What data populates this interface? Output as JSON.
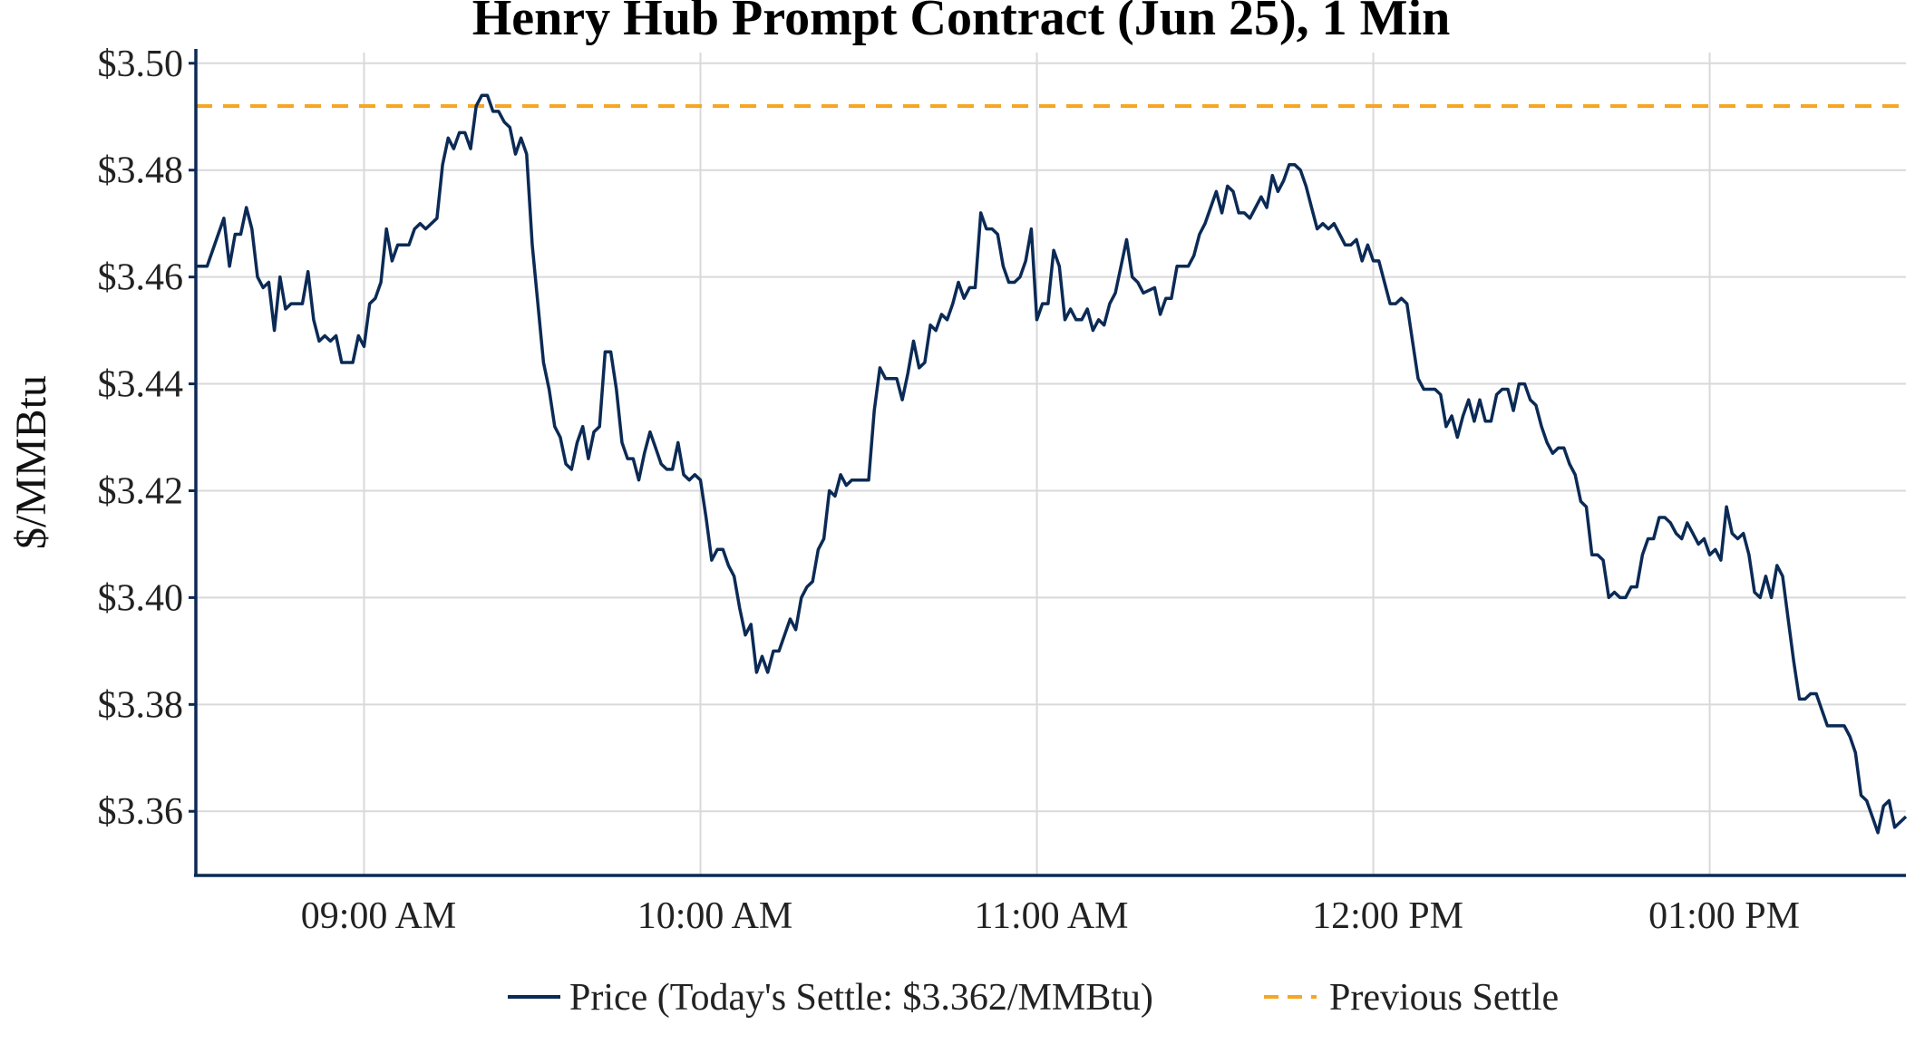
{
  "chart_data": {
    "type": "line",
    "title": "Henry Hub Prompt Contract (Jun 25), 1 Min",
    "xlabel": "",
    "ylabel": "$/MMBtu",
    "x_start": "08:30",
    "x_end": "13:35",
    "xlim": [
      "08:30",
      "13:35"
    ],
    "ylim": [
      3.348,
      3.502
    ],
    "y_ticks": [
      3.36,
      3.38,
      3.4,
      3.42,
      3.44,
      3.46,
      3.48,
      3.5
    ],
    "y_tick_labels": [
      "$3.36",
      "$3.38",
      "$3.40",
      "$3.42",
      "$3.44",
      "$3.46",
      "$3.48",
      "$3.50"
    ],
    "x_ticks": [
      "09:00",
      "10:00",
      "11:00",
      "12:00",
      "13:00"
    ],
    "x_tick_labels": [
      "09:00 AM",
      "10:00 AM",
      "11:00 AM",
      "12:00 PM",
      "01:00 PM"
    ],
    "grid": true,
    "legend_position": "bottom-center",
    "series": [
      {
        "name": "Price (Today's Settle: $3.362/MMBtu)",
        "color": "#0b2a55",
        "style": "solid",
        "points": [
          [
            "08:30",
            3.462
          ],
          [
            "08:32",
            3.462
          ],
          [
            "08:34",
            3.468
          ],
          [
            "08:35",
            3.471
          ],
          [
            "08:36",
            3.462
          ],
          [
            "08:37",
            3.468
          ],
          [
            "08:38",
            3.468
          ],
          [
            "08:39",
            3.473
          ],
          [
            "08:40",
            3.469
          ],
          [
            "08:41",
            3.46
          ],
          [
            "08:42",
            3.458
          ],
          [
            "08:43",
            3.459
          ],
          [
            "08:44",
            3.45
          ],
          [
            "08:45",
            3.46
          ],
          [
            "08:46",
            3.454
          ],
          [
            "08:47",
            3.455
          ],
          [
            "08:49",
            3.455
          ],
          [
            "08:50",
            3.461
          ],
          [
            "08:51",
            3.452
          ],
          [
            "08:52",
            3.448
          ],
          [
            "08:53",
            3.449
          ],
          [
            "08:54",
            3.448
          ],
          [
            "08:55",
            3.449
          ],
          [
            "08:56",
            3.444
          ],
          [
            "08:58",
            3.444
          ],
          [
            "08:59",
            3.449
          ],
          [
            "09:00",
            3.447
          ],
          [
            "09:01",
            3.455
          ],
          [
            "09:02",
            3.456
          ],
          [
            "09:03",
            3.459
          ],
          [
            "09:04",
            3.469
          ],
          [
            "09:05",
            3.463
          ],
          [
            "09:06",
            3.466
          ],
          [
            "09:08",
            3.466
          ],
          [
            "09:09",
            3.469
          ],
          [
            "09:10",
            3.47
          ],
          [
            "09:11",
            3.469
          ],
          [
            "09:13",
            3.471
          ],
          [
            "09:14",
            3.481
          ],
          [
            "09:15",
            3.486
          ],
          [
            "09:16",
            3.484
          ],
          [
            "09:17",
            3.487
          ],
          [
            "09:18",
            3.487
          ],
          [
            "09:19",
            3.484
          ],
          [
            "09:20",
            3.492
          ],
          [
            "09:21",
            3.494
          ],
          [
            "09:22",
            3.494
          ],
          [
            "09:23",
            3.491
          ],
          [
            "09:24",
            3.491
          ],
          [
            "09:25",
            3.489
          ],
          [
            "09:26",
            3.488
          ],
          [
            "09:27",
            3.483
          ],
          [
            "09:28",
            3.486
          ],
          [
            "09:29",
            3.483
          ],
          [
            "09:30",
            3.466
          ],
          [
            "09:31",
            3.455
          ],
          [
            "09:32",
            3.444
          ],
          [
            "09:33",
            3.439
          ],
          [
            "09:34",
            3.432
          ],
          [
            "09:35",
            3.43
          ],
          [
            "09:36",
            3.425
          ],
          [
            "09:37",
            3.424
          ],
          [
            "09:38",
            3.429
          ],
          [
            "09:39",
            3.432
          ],
          [
            "09:40",
            3.426
          ],
          [
            "09:41",
            3.431
          ],
          [
            "09:42",
            3.432
          ],
          [
            "09:43",
            3.446
          ],
          [
            "09:44",
            3.446
          ],
          [
            "09:45",
            3.439
          ],
          [
            "09:46",
            3.429
          ],
          [
            "09:47",
            3.426
          ],
          [
            "09:48",
            3.426
          ],
          [
            "09:49",
            3.422
          ],
          [
            "09:50",
            3.427
          ],
          [
            "09:51",
            3.431
          ],
          [
            "09:52",
            3.428
          ],
          [
            "09:53",
            3.425
          ],
          [
            "09:54",
            3.424
          ],
          [
            "09:55",
            3.424
          ],
          [
            "09:56",
            3.429
          ],
          [
            "09:57",
            3.423
          ],
          [
            "09:58",
            3.422
          ],
          [
            "09:59",
            3.423
          ],
          [
            "10:00",
            3.422
          ],
          [
            "10:01",
            3.415
          ],
          [
            "10:02",
            3.407
          ],
          [
            "10:03",
            3.409
          ],
          [
            "10:04",
            3.409
          ],
          [
            "10:05",
            3.406
          ],
          [
            "10:06",
            3.404
          ],
          [
            "10:07",
            3.398
          ],
          [
            "10:08",
            3.393
          ],
          [
            "10:09",
            3.395
          ],
          [
            "10:10",
            3.386
          ],
          [
            "10:11",
            3.389
          ],
          [
            "10:12",
            3.386
          ],
          [
            "10:13",
            3.39
          ],
          [
            "10:14",
            3.39
          ],
          [
            "10:15",
            3.393
          ],
          [
            "10:16",
            3.396
          ],
          [
            "10:17",
            3.394
          ],
          [
            "10:18",
            3.4
          ],
          [
            "10:19",
            3.402
          ],
          [
            "10:20",
            3.403
          ],
          [
            "10:21",
            3.409
          ],
          [
            "10:22",
            3.411
          ],
          [
            "10:23",
            3.42
          ],
          [
            "10:24",
            3.419
          ],
          [
            "10:25",
            3.423
          ],
          [
            "10:26",
            3.421
          ],
          [
            "10:27",
            3.422
          ],
          [
            "10:30",
            3.422
          ],
          [
            "10:31",
            3.435
          ],
          [
            "10:32",
            3.443
          ],
          [
            "10:33",
            3.441
          ],
          [
            "10:35",
            3.441
          ],
          [
            "10:36",
            3.437
          ],
          [
            "10:37",
            3.442
          ],
          [
            "10:38",
            3.448
          ],
          [
            "10:39",
            3.443
          ],
          [
            "10:40",
            3.444
          ],
          [
            "10:41",
            3.451
          ],
          [
            "10:42",
            3.45
          ],
          [
            "10:43",
            3.453
          ],
          [
            "10:44",
            3.452
          ],
          [
            "10:45",
            3.455
          ],
          [
            "10:46",
            3.459
          ],
          [
            "10:47",
            3.456
          ],
          [
            "10:48",
            3.458
          ],
          [
            "10:49",
            3.458
          ],
          [
            "10:50",
            3.472
          ],
          [
            "10:51",
            3.469
          ],
          [
            "10:52",
            3.469
          ],
          [
            "10:53",
            3.468
          ],
          [
            "10:54",
            3.462
          ],
          [
            "10:55",
            3.459
          ],
          [
            "10:56",
            3.459
          ],
          [
            "10:57",
            3.46
          ],
          [
            "10:58",
            3.463
          ],
          [
            "10:59",
            3.469
          ],
          [
            "11:00",
            3.452
          ],
          [
            "11:01",
            3.455
          ],
          [
            "11:02",
            3.455
          ],
          [
            "11:03",
            3.465
          ],
          [
            "11:04",
            3.462
          ],
          [
            "11:05",
            3.452
          ],
          [
            "11:06",
            3.454
          ],
          [
            "11:07",
            3.452
          ],
          [
            "11:08",
            3.452
          ],
          [
            "11:09",
            3.454
          ],
          [
            "11:10",
            3.45
          ],
          [
            "11:11",
            3.452
          ],
          [
            "11:12",
            3.451
          ],
          [
            "11:13",
            3.455
          ],
          [
            "11:14",
            3.457
          ],
          [
            "11:15",
            3.462
          ],
          [
            "11:16",
            3.467
          ],
          [
            "11:17",
            3.46
          ],
          [
            "11:18",
            3.459
          ],
          [
            "11:19",
            3.457
          ],
          [
            "11:21",
            3.458
          ],
          [
            "11:22",
            3.453
          ],
          [
            "11:23",
            3.456
          ],
          [
            "11:24",
            3.456
          ],
          [
            "11:25",
            3.462
          ],
          [
            "11:27",
            3.462
          ],
          [
            "11:28",
            3.464
          ],
          [
            "11:29",
            3.468
          ],
          [
            "11:30",
            3.47
          ],
          [
            "11:31",
            3.473
          ],
          [
            "11:32",
            3.476
          ],
          [
            "11:33",
            3.472
          ],
          [
            "11:34",
            3.477
          ],
          [
            "11:35",
            3.476
          ],
          [
            "11:36",
            3.472
          ],
          [
            "11:37",
            3.472
          ],
          [
            "11:38",
            3.471
          ],
          [
            "11:39",
            3.473
          ],
          [
            "11:40",
            3.475
          ],
          [
            "11:41",
            3.473
          ],
          [
            "11:42",
            3.479
          ],
          [
            "11:43",
            3.476
          ],
          [
            "11:44",
            3.478
          ],
          [
            "11:45",
            3.481
          ],
          [
            "11:46",
            3.481
          ],
          [
            "11:47",
            3.48
          ],
          [
            "11:48",
            3.477
          ],
          [
            "11:49",
            3.473
          ],
          [
            "11:50",
            3.469
          ],
          [
            "11:51",
            3.47
          ],
          [
            "11:52",
            3.469
          ],
          [
            "11:53",
            3.47
          ],
          [
            "11:54",
            3.468
          ],
          [
            "11:55",
            3.466
          ],
          [
            "11:56",
            3.466
          ],
          [
            "11:57",
            3.467
          ],
          [
            "11:58",
            3.463
          ],
          [
            "11:59",
            3.466
          ],
          [
            "12:00",
            3.463
          ],
          [
            "12:01",
            3.463
          ],
          [
            "12:02",
            3.459
          ],
          [
            "12:03",
            3.455
          ],
          [
            "12:04",
            3.455
          ],
          [
            "12:05",
            3.456
          ],
          [
            "12:06",
            3.455
          ],
          [
            "12:07",
            3.448
          ],
          [
            "12:08",
            3.441
          ],
          [
            "12:09",
            3.439
          ],
          [
            "12:11",
            3.439
          ],
          [
            "12:12",
            3.438
          ],
          [
            "12:13",
            3.432
          ],
          [
            "12:14",
            3.434
          ],
          [
            "12:15",
            3.43
          ],
          [
            "12:16",
            3.434
          ],
          [
            "12:17",
            3.437
          ],
          [
            "12:18",
            3.433
          ],
          [
            "12:19",
            3.437
          ],
          [
            "12:20",
            3.433
          ],
          [
            "12:21",
            3.433
          ],
          [
            "12:22",
            3.438
          ],
          [
            "12:23",
            3.439
          ],
          [
            "12:24",
            3.439
          ],
          [
            "12:25",
            3.435
          ],
          [
            "12:26",
            3.44
          ],
          [
            "12:27",
            3.44
          ],
          [
            "12:28",
            3.437
          ],
          [
            "12:29",
            3.436
          ],
          [
            "12:30",
            3.432
          ],
          [
            "12:31",
            3.429
          ],
          [
            "12:32",
            3.427
          ],
          [
            "12:33",
            3.428
          ],
          [
            "12:34",
            3.428
          ],
          [
            "12:35",
            3.425
          ],
          [
            "12:36",
            3.423
          ],
          [
            "12:37",
            3.418
          ],
          [
            "12:38",
            3.417
          ],
          [
            "12:39",
            3.408
          ],
          [
            "12:40",
            3.408
          ],
          [
            "12:41",
            3.407
          ],
          [
            "12:42",
            3.4
          ],
          [
            "12:43",
            3.401
          ],
          [
            "12:44",
            3.4
          ],
          [
            "12:45",
            3.4
          ],
          [
            "12:46",
            3.402
          ],
          [
            "12:47",
            3.402
          ],
          [
            "12:48",
            3.408
          ],
          [
            "12:49",
            3.411
          ],
          [
            "12:50",
            3.411
          ],
          [
            "12:51",
            3.415
          ],
          [
            "12:52",
            3.415
          ],
          [
            "12:53",
            3.414
          ],
          [
            "12:54",
            3.412
          ],
          [
            "12:55",
            3.411
          ],
          [
            "12:56",
            3.414
          ],
          [
            "12:57",
            3.412
          ],
          [
            "12:58",
            3.41
          ],
          [
            "12:59",
            3.411
          ],
          [
            "13:00",
            3.408
          ],
          [
            "13:01",
            3.409
          ],
          [
            "13:02",
            3.407
          ],
          [
            "13:03",
            3.417
          ],
          [
            "13:04",
            3.412
          ],
          [
            "13:05",
            3.411
          ],
          [
            "13:06",
            3.412
          ],
          [
            "13:07",
            3.408
          ],
          [
            "13:08",
            3.401
          ],
          [
            "13:09",
            3.4
          ],
          [
            "13:10",
            3.404
          ],
          [
            "13:11",
            3.4
          ],
          [
            "13:12",
            3.406
          ],
          [
            "13:13",
            3.404
          ],
          [
            "13:14",
            3.396
          ],
          [
            "13:15",
            3.388
          ],
          [
            "13:16",
            3.381
          ],
          [
            "13:17",
            3.381
          ],
          [
            "13:18",
            3.382
          ],
          [
            "13:19",
            3.382
          ],
          [
            "13:20",
            3.379
          ],
          [
            "13:21",
            3.376
          ],
          [
            "13:24",
            3.376
          ],
          [
            "13:25",
            3.374
          ],
          [
            "13:26",
            3.371
          ],
          [
            "13:27",
            3.363
          ],
          [
            "13:28",
            3.362
          ],
          [
            "13:29",
            3.359
          ],
          [
            "13:30",
            3.356
          ],
          [
            "13:31",
            3.361
          ],
          [
            "13:32",
            3.362
          ],
          [
            "13:33",
            3.357
          ],
          [
            "13:34",
            3.358
          ],
          [
            "13:35",
            3.359
          ]
        ]
      },
      {
        "name": "Previous Settle",
        "color": "#f5a623",
        "style": "dashed",
        "value": 3.492
      }
    ]
  }
}
